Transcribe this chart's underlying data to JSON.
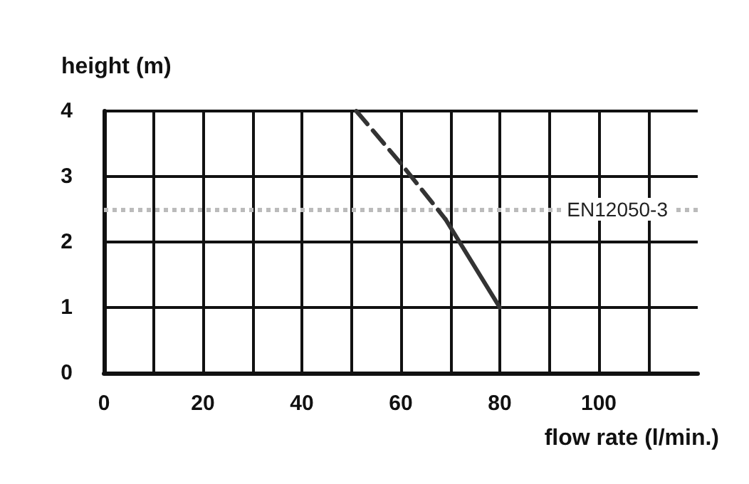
{
  "chart_data": {
    "type": "line",
    "xlabel": "flow rate (l/min.)",
    "ylabel": "height (m)",
    "xlim": [
      0,
      120
    ],
    "ylim": [
      0,
      4
    ],
    "xticks": [
      0,
      {
        "value": 10,
        "label": null
      },
      20,
      {
        "value": 30,
        "label": null
      },
      40,
      {
        "value": 50,
        "label": null
      },
      60,
      {
        "value": 70,
        "label": null
      },
      80,
      {
        "value": 90,
        "label": null
      },
      100,
      {
        "value": 110,
        "label": null
      }
    ],
    "yticks": [
      0,
      1,
      2,
      3,
      4
    ],
    "series": [
      {
        "color": "#333333",
        "line_style": "dashed",
        "x": [
          51,
          60,
          69
        ],
        "values": [
          4,
          3.2,
          2.35
        ]
      },
      {
        "color": "#333333",
        "line_style": "solid",
        "x": [
          69,
          80
        ],
        "values": [
          2.35,
          1
        ]
      }
    ],
    "ref_lines": [
      {
        "axis": "y",
        "value": 2.5,
        "label": "EN12050-3",
        "color": "#bbbbbb",
        "line_style": "dotted"
      }
    ],
    "grid": true,
    "marker": "none"
  }
}
